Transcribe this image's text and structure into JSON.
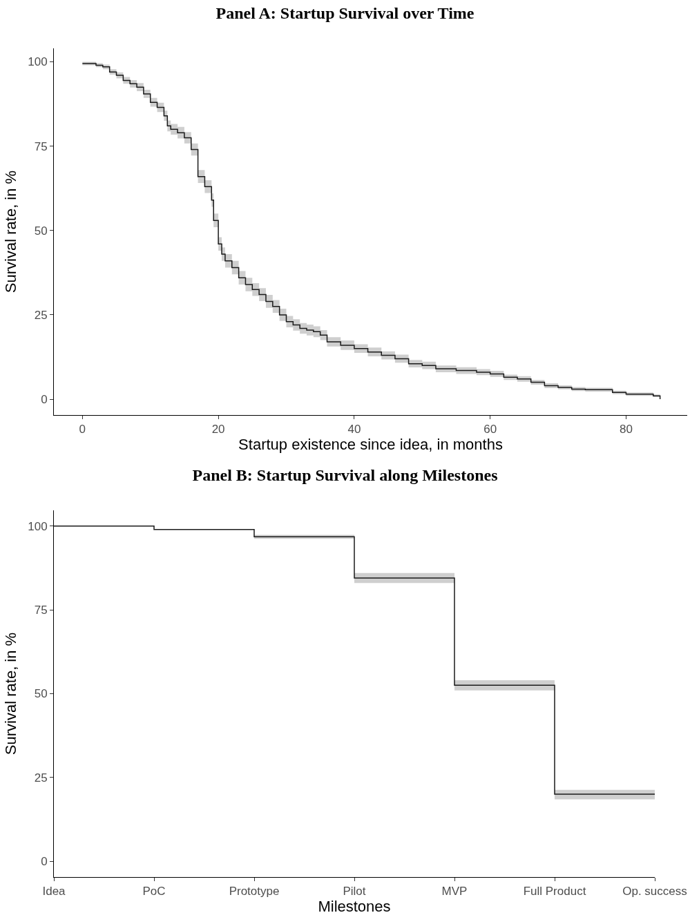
{
  "chart_data": [
    {
      "type": "step",
      "title": "Panel A: Startup Survival over Time",
      "xlabel": "Startup existence since idea, in months",
      "ylabel": "Survival rate, in %",
      "xlim": [
        -4.2,
        89
      ],
      "ylim": [
        -4.7,
        104
      ],
      "xticks": [
        0,
        20,
        40,
        60,
        80
      ],
      "yticks": [
        0,
        25,
        50,
        75,
        100
      ],
      "series": [
        {
          "color": "#1a1a1a",
          "x": [
            0,
            2,
            3,
            4,
            5,
            6,
            7,
            8,
            9,
            10,
            11,
            12,
            12.5,
            13,
            14,
            15,
            16,
            17,
            18,
            19,
            19.3,
            20,
            20.5,
            21,
            22,
            23,
            24,
            25,
            26,
            27,
            28,
            29,
            30,
            31,
            32,
            33,
            34,
            35,
            36,
            38,
            40,
            42,
            44,
            46,
            48,
            50,
            52,
            55,
            58,
            60,
            62,
            64,
            66,
            68,
            70,
            72,
            74,
            76,
            78,
            80,
            84,
            85
          ],
          "values": [
            99.5,
            99,
            98.5,
            97,
            96,
            94.5,
            93.5,
            92.5,
            90.5,
            88,
            86.5,
            84,
            81,
            80,
            79,
            77.5,
            74,
            66,
            63,
            59,
            53,
            46,
            43,
            41,
            39,
            36,
            34,
            32.5,
            31,
            29,
            27.5,
            25,
            23,
            22,
            21,
            20.5,
            20,
            19,
            17,
            16,
            15,
            14,
            13,
            12,
            10.5,
            10,
            9,
            8.5,
            8,
            7.5,
            6.5,
            6,
            5,
            4,
            3.5,
            3,
            2.8,
            2.8,
            2,
            1.5,
            1,
            0
          ],
          "lower": [
            99,
            98.4,
            97.8,
            96.2,
            95.1,
            93.5,
            92.4,
            91.3,
            89.3,
            86.7,
            85.1,
            82.5,
            79.4,
            78.4,
            77.3,
            75.8,
            72.2,
            64.1,
            61.1,
            57,
            51,
            44,
            41,
            39,
            37,
            34,
            32,
            30.6,
            29.1,
            27.1,
            25.6,
            23.2,
            21.3,
            20.3,
            19.4,
            18.9,
            18.4,
            17.5,
            15.6,
            14.6,
            13.7,
            12.7,
            11.8,
            10.8,
            9.4,
            8.9,
            8,
            7.5,
            7.1,
            6.6,
            5.7,
            5.2,
            4.3,
            3.3,
            2.9,
            2.4,
            2.2,
            2.2,
            1.5,
            1,
            0.6,
            0
          ],
          "upper": [
            100,
            99.6,
            99.2,
            97.8,
            96.9,
            95.5,
            94.6,
            93.7,
            91.7,
            89.3,
            87.9,
            85.5,
            82.6,
            81.6,
            80.7,
            79.2,
            75.8,
            67.9,
            64.9,
            61,
            55,
            48,
            45,
            43,
            41,
            38,
            36,
            34.4,
            32.9,
            30.9,
            29.4,
            26.8,
            24.7,
            23.7,
            22.6,
            22.1,
            21.6,
            20.5,
            18.4,
            17.4,
            16.3,
            15.3,
            14.2,
            13.2,
            11.6,
            11.1,
            10,
            9.5,
            8.9,
            8.4,
            7.3,
            6.8,
            5.7,
            4.7,
            4.1,
            3.6,
            3.4,
            3.4,
            2.5,
            2,
            1.4,
            0
          ]
        }
      ]
    },
    {
      "type": "step",
      "title": "Panel B: Startup Survival along Milestones",
      "xlabel": "Milestones",
      "ylabel": "Survival rate, in %",
      "ylim": [
        -4.7,
        104.7
      ],
      "yticks": [
        0,
        25,
        50,
        75,
        100
      ],
      "categories": [
        "Idea",
        "PoC",
        "Prototype",
        "Pilot",
        "MVP",
        "Full Product",
        "Op. success"
      ],
      "series": [
        {
          "color": "#1a1a1a",
          "values": [
            100,
            99,
            96.8,
            84.5,
            52.5,
            20,
            20
          ],
          "lower": [
            100,
            99,
            96.2,
            83,
            51,
            18.5,
            18.5
          ],
          "upper": [
            100,
            99,
            97.4,
            86,
            54,
            21.3,
            21.3
          ]
        }
      ]
    }
  ]
}
